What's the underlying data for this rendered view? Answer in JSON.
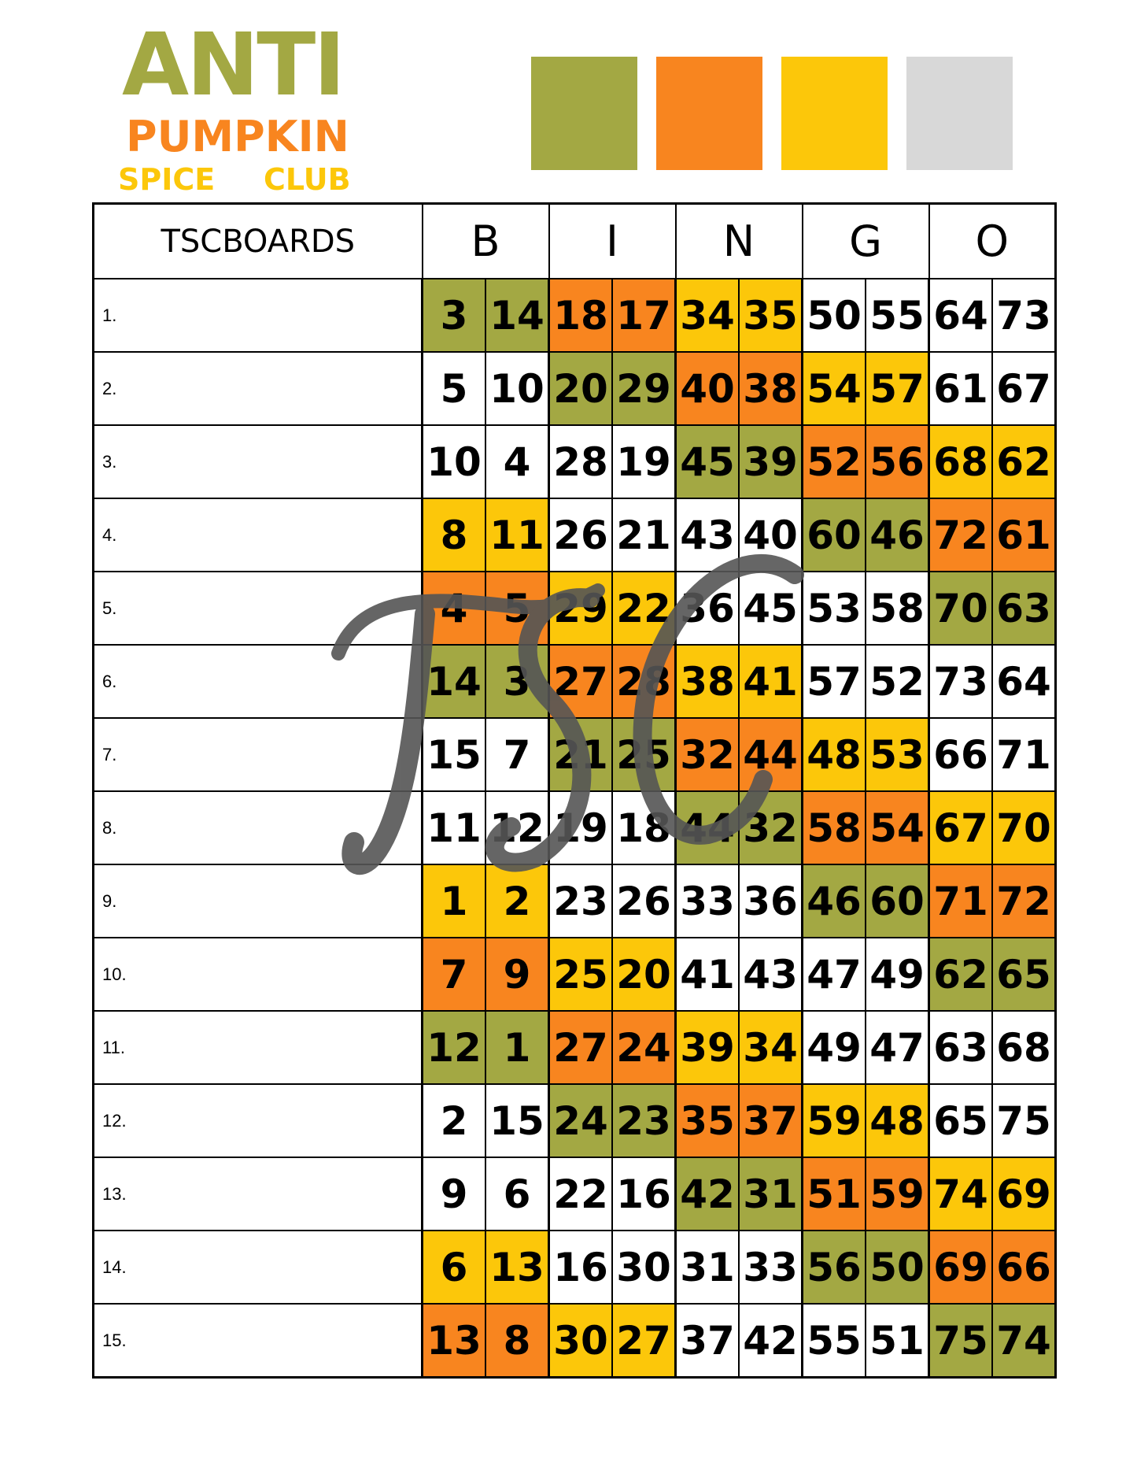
{
  "logo": {
    "line1": "ANTI",
    "line2": "PUMPKIN",
    "line3": "SPICE",
    "line4": "CLUB"
  },
  "swatches": [
    "#a3a843",
    "#f8851f",
    "#fcc70a",
    "#d8d8d8"
  ],
  "colors": {
    "G": "#a3a843",
    "O": "#f8851f",
    "Y": "#fcc70a",
    "W": "#ffffff"
  },
  "header": {
    "label": "TSCBOARDS",
    "letters": [
      "B",
      "I",
      "N",
      "G",
      "O"
    ]
  },
  "watermark": "TSC",
  "rows": [
    {
      "label": "1.",
      "colors": "GOYWW",
      "values": [
        3,
        14,
        18,
        17,
        34,
        35,
        50,
        55,
        64,
        73
      ]
    },
    {
      "label": "2.",
      "colors": "WGOYW",
      "values": [
        5,
        10,
        20,
        29,
        40,
        38,
        54,
        57,
        61,
        67
      ]
    },
    {
      "label": "3.",
      "colors": "WWGOY",
      "values": [
        10,
        4,
        28,
        19,
        45,
        39,
        52,
        56,
        68,
        62
      ]
    },
    {
      "label": "4.",
      "colors": "YWWGO",
      "values": [
        8,
        11,
        26,
        21,
        43,
        40,
        60,
        46,
        72,
        61
      ]
    },
    {
      "label": "5.",
      "colors": "OYWWG",
      "values": [
        4,
        5,
        29,
        22,
        36,
        45,
        53,
        58,
        70,
        63
      ]
    },
    {
      "label": "6.",
      "colors": "GOYWW",
      "values": [
        14,
        3,
        27,
        28,
        38,
        41,
        57,
        52,
        73,
        64
      ]
    },
    {
      "label": "7.",
      "colors": "WGOYW",
      "values": [
        15,
        7,
        21,
        25,
        32,
        44,
        48,
        53,
        66,
        71
      ]
    },
    {
      "label": "8.",
      "colors": "WWGOY",
      "values": [
        11,
        12,
        19,
        18,
        44,
        32,
        58,
        54,
        67,
        70
      ]
    },
    {
      "label": "9.",
      "colors": "YWWGO",
      "values": [
        1,
        2,
        23,
        26,
        33,
        36,
        46,
        60,
        71,
        72
      ]
    },
    {
      "label": "10.",
      "colors": "OYWWG",
      "values": [
        7,
        9,
        25,
        20,
        41,
        43,
        47,
        49,
        62,
        65
      ]
    },
    {
      "label": "11.",
      "colors": "GOYWW",
      "values": [
        12,
        1,
        27,
        24,
        39,
        34,
        49,
        47,
        63,
        68
      ]
    },
    {
      "label": "12.",
      "colors": "WGOYW",
      "values": [
        2,
        15,
        24,
        23,
        35,
        37,
        59,
        48,
        65,
        75
      ]
    },
    {
      "label": "13.",
      "colors": "WWGOY",
      "values": [
        9,
        6,
        22,
        16,
        42,
        31,
        51,
        59,
        74,
        69
      ]
    },
    {
      "label": "14.",
      "colors": "YWWGO",
      "values": [
        6,
        13,
        16,
        30,
        31,
        33,
        56,
        50,
        69,
        66
      ]
    },
    {
      "label": "15.",
      "colors": "OYWWG",
      "values": [
        13,
        8,
        30,
        27,
        37,
        42,
        55,
        51,
        75,
        74
      ]
    }
  ]
}
